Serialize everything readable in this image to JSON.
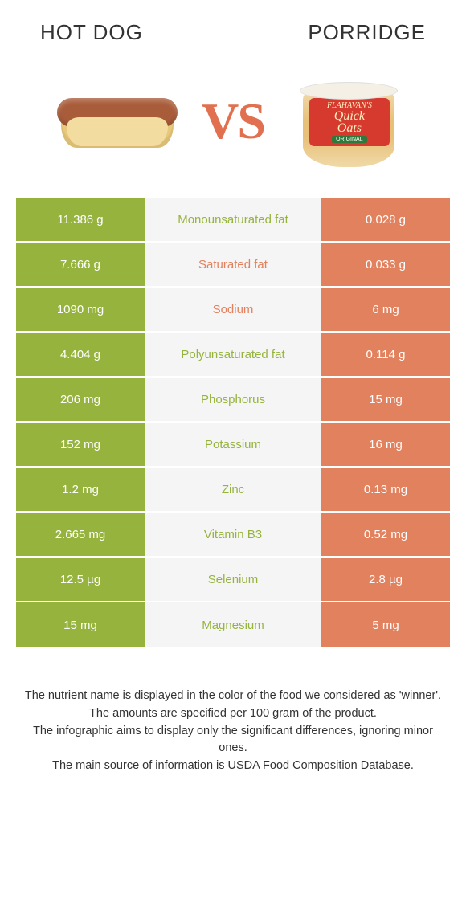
{
  "titles": {
    "left": "HOT DOG",
    "right": "PORRIDGE"
  },
  "vs": "VS",
  "cup": {
    "brand": "FLAHAVAN'S",
    "main1": "Quick",
    "main2": "Oats",
    "sub": "ORIGINAL"
  },
  "colors": {
    "left_bg": "#96b33e",
    "right_bg": "#e2815e",
    "mid_bg": "#f5f5f5",
    "vs_color": "#e07050"
  },
  "rows": [
    {
      "left": "11.386 g",
      "label": "Monounsaturated fat",
      "right": "0.028 g",
      "label_color": "#96b33e"
    },
    {
      "left": "7.666 g",
      "label": "Saturated fat",
      "right": "0.033 g",
      "label_color": "#e2815e"
    },
    {
      "left": "1090 mg",
      "label": "Sodium",
      "right": "6 mg",
      "label_color": "#e2815e"
    },
    {
      "left": "4.404 g",
      "label": "Polyunsaturated fat",
      "right": "0.114 g",
      "label_color": "#96b33e"
    },
    {
      "left": "206 mg",
      "label": "Phosphorus",
      "right": "15 mg",
      "label_color": "#96b33e"
    },
    {
      "left": "152 mg",
      "label": "Potassium",
      "right": "16 mg",
      "label_color": "#96b33e"
    },
    {
      "left": "1.2 mg",
      "label": "Zinc",
      "right": "0.13 mg",
      "label_color": "#96b33e"
    },
    {
      "left": "2.665 mg",
      "label": "Vitamin B3",
      "right": "0.52 mg",
      "label_color": "#96b33e"
    },
    {
      "left": "12.5 µg",
      "label": "Selenium",
      "right": "2.8 µg",
      "label_color": "#96b33e"
    },
    {
      "left": "15 mg",
      "label": "Magnesium",
      "right": "5 mg",
      "label_color": "#96b33e"
    }
  ],
  "footnotes": [
    "The nutrient name is displayed in the color of the food we considered as 'winner'.",
    "The amounts are specified per 100 gram of the product.",
    "The infographic aims to display only the significant differences, ignoring minor ones.",
    "The main source of information is USDA Food Composition Database."
  ]
}
